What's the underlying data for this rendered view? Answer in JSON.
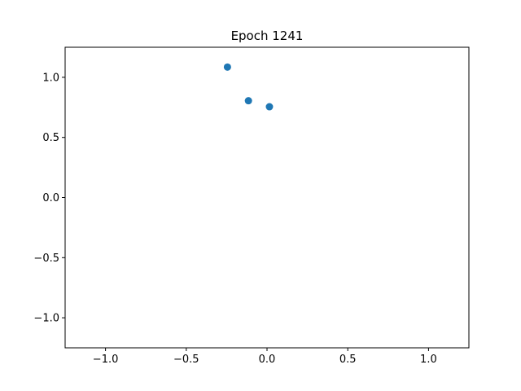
{
  "chart_data": {
    "type": "scatter",
    "title": "Epoch 1241",
    "xlabel": "",
    "ylabel": "",
    "xlim": [
      -1.25,
      1.25
    ],
    "ylim": [
      -1.25,
      1.25
    ],
    "xticks": [
      -1.0,
      -0.5,
      0.0,
      0.5,
      1.0
    ],
    "yticks": [
      -1.0,
      -0.5,
      0.0,
      0.5,
      1.0
    ],
    "xtick_labels": [
      "−1.0",
      "−0.5",
      "0.0",
      "0.5",
      "1.0"
    ],
    "ytick_labels": [
      "−1.0",
      "−0.5",
      "0.0",
      "0.5",
      "1.0"
    ],
    "grid": false,
    "legend": "none",
    "series": [
      {
        "color": "#1f77b4",
        "points": [
          {
            "x": -0.245,
            "y": 1.085
          },
          {
            "x": -0.115,
            "y": 0.805
          },
          {
            "x": 0.015,
            "y": 0.755
          }
        ]
      }
    ]
  }
}
